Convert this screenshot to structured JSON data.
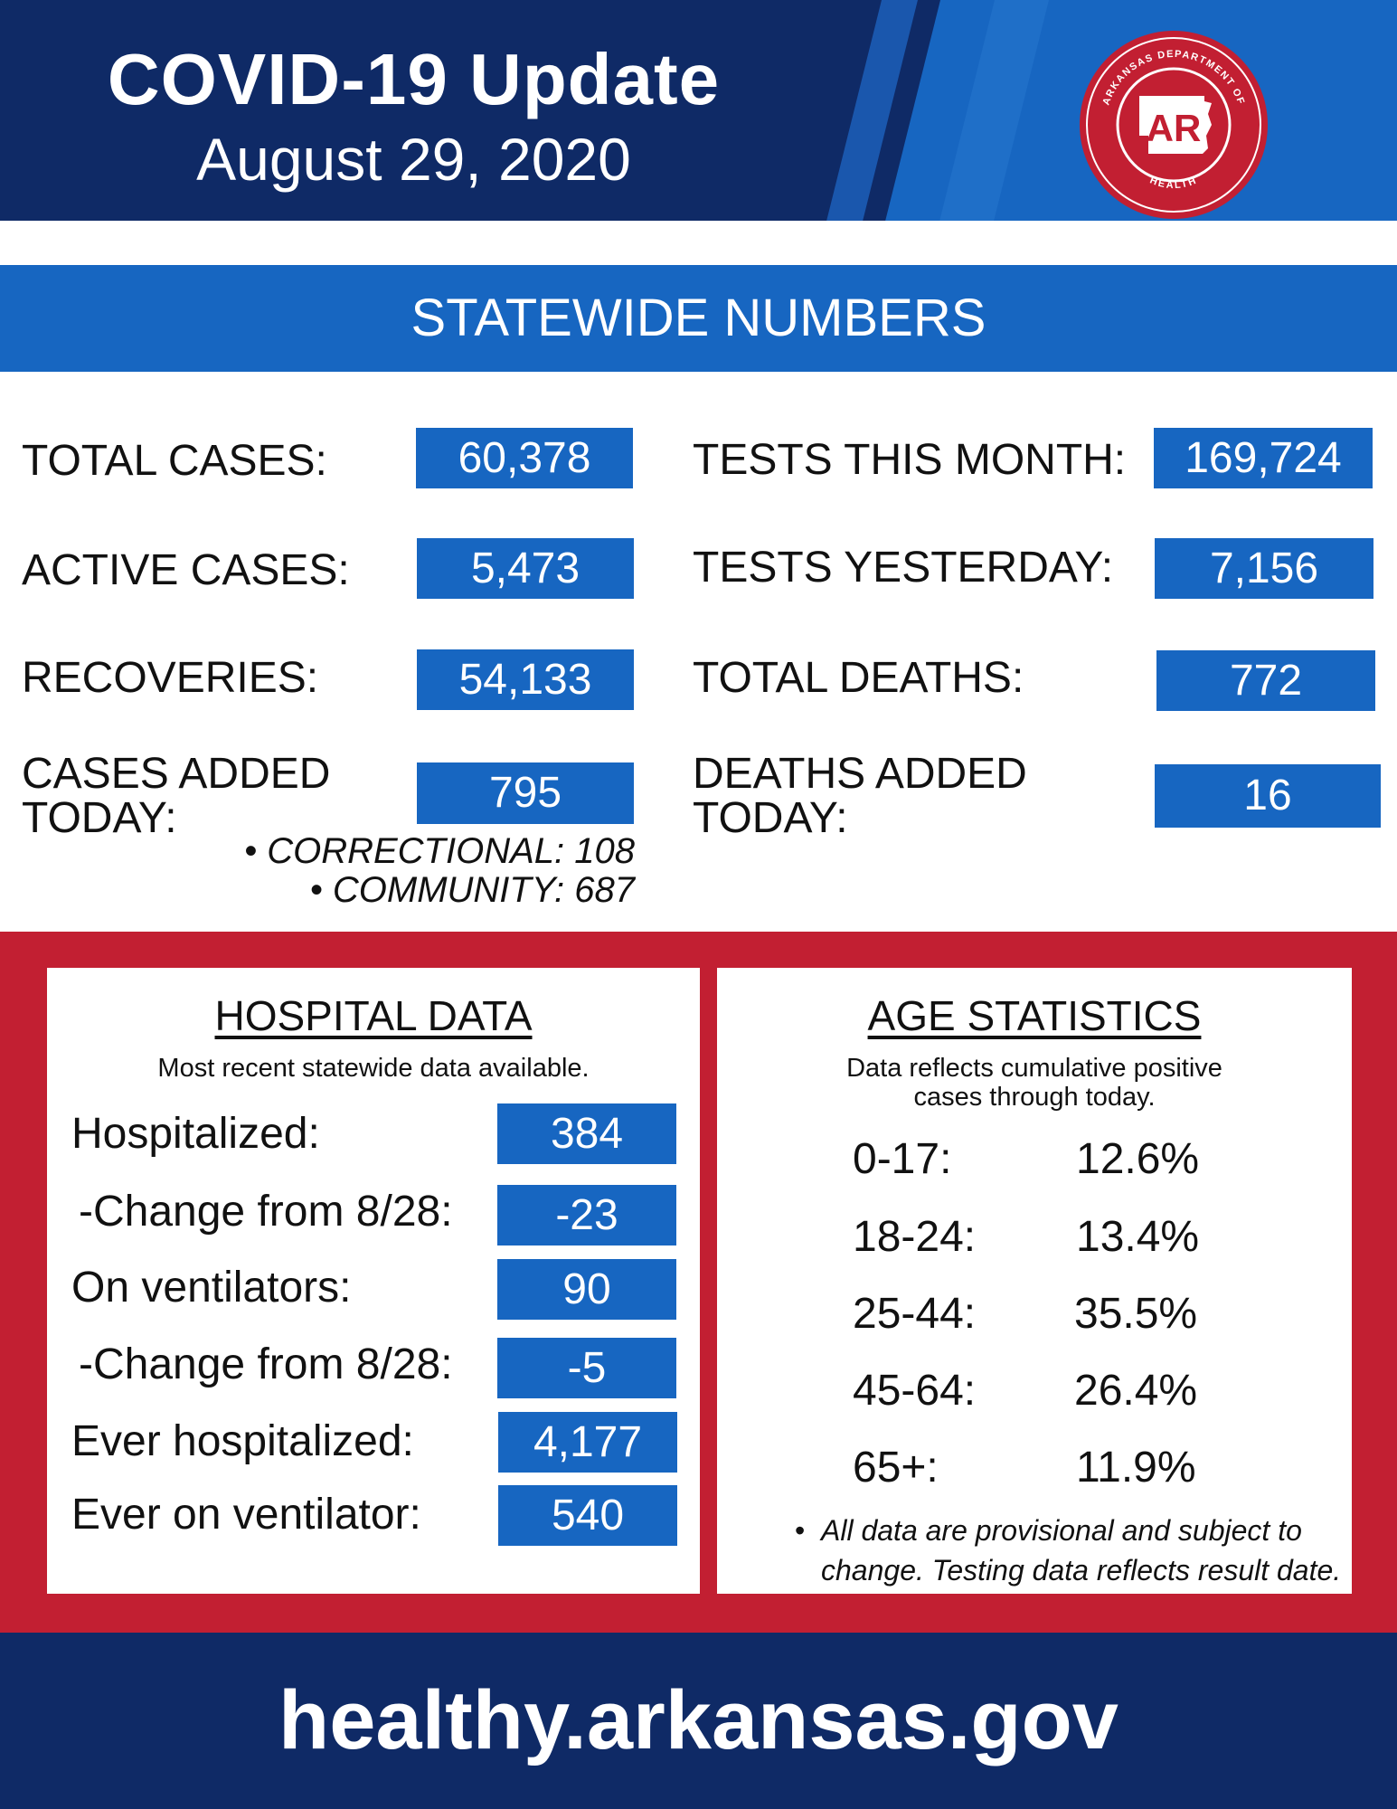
{
  "header": {
    "title": "COVID-19 Update",
    "date": "August 29, 2020",
    "seal": {
      "icon": "arkansas-department-of-health-seal-icon",
      "ring_text": "ARKANSAS DEPARTMENT OF",
      "bottom_text": "HEALTH",
      "center_text": "AR",
      "color": "#c21f32"
    }
  },
  "banner": {
    "label": "STATEWIDE NUMBERS"
  },
  "statewide": {
    "total_cases": {
      "label": "TOTAL CASES:",
      "value": "60,378"
    },
    "active_cases": {
      "label": "ACTIVE CASES:",
      "value": "5,473"
    },
    "recoveries": {
      "label": "RECOVERIES:",
      "value": "54,133"
    },
    "cases_added": {
      "label_line1": "CASES ADDED",
      "label_line2": "TODAY:",
      "value": "795"
    },
    "correctional": "• CORRECTIONAL: 108",
    "community": "• COMMUNITY: 687",
    "tests_month": {
      "label": "TESTS THIS MONTH:",
      "value": "169,724"
    },
    "tests_yesterday": {
      "label": "TESTS YESTERDAY:",
      "value": "7,156"
    },
    "total_deaths": {
      "label": "TOTAL DEATHS:",
      "value": "772"
    },
    "deaths_added": {
      "label_line1": "DEATHS ADDED",
      "label_line2": "TODAY:",
      "value": "16"
    }
  },
  "hospital": {
    "title": "HOSPITAL DATA",
    "subtitle": "Most recent statewide data available.",
    "rows": [
      {
        "label": "Hospitalized:",
        "value": "384"
      },
      {
        "label": "-Change from 8/28:",
        "value": "-23"
      },
      {
        "label": "On ventilators:",
        "value": "90"
      },
      {
        "label": "-Change from 8/28:",
        "value": "-5"
      },
      {
        "label": "Ever hospitalized:",
        "value": "4,177"
      },
      {
        "label": "Ever on ventilator:",
        "value": "540"
      }
    ]
  },
  "age": {
    "title": "AGE STATISTICS",
    "subtitle_line1": "Data reflects cumulative positive",
    "subtitle_line2": "cases through today.",
    "rows": [
      {
        "group": "0-17:",
        "pct": "12.6%"
      },
      {
        "group": "18-24:",
        "pct": "13.4%"
      },
      {
        "group": "25-44:",
        "pct": "35.5%"
      },
      {
        "group": "45-64:",
        "pct": "26.4%"
      },
      {
        "group": "65+:",
        "pct": "11.9%"
      }
    ],
    "disclaimer_line1": "All data are provisional and subject to",
    "disclaimer_line2": "change. Testing data reflects result date."
  },
  "footer": {
    "url": "healthy.arkansas.gov"
  },
  "colors": {
    "navy": "#0f2a66",
    "blue": "#1766c1",
    "red": "#c21f32"
  }
}
